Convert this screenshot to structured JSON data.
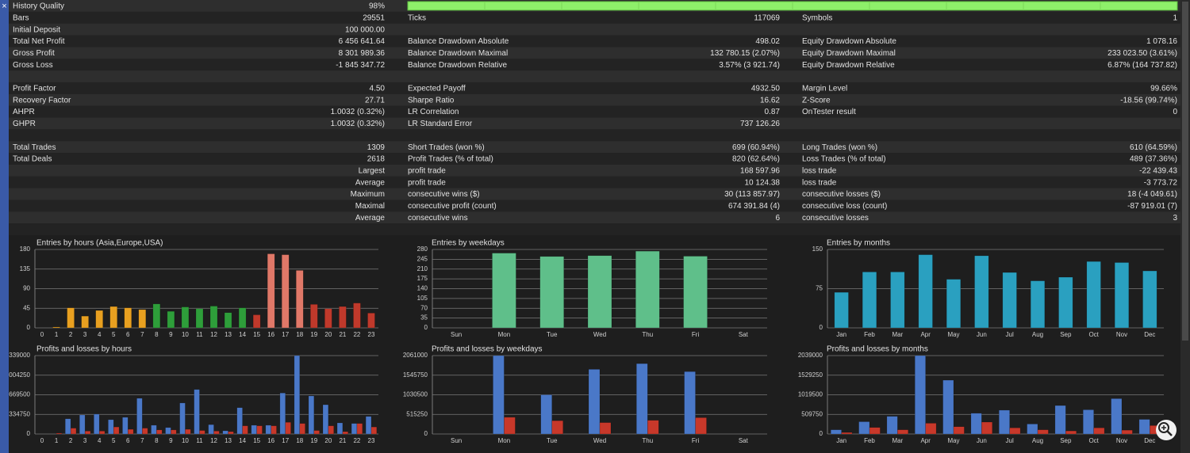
{
  "stats": {
    "rows": [
      [
        {
          "label": "History Quality",
          "value": "98%"
        }
      ],
      [
        {
          "label": "Bars",
          "value": "29551"
        },
        {
          "label": "Ticks",
          "value": "117069"
        },
        {
          "label": "Symbols",
          "value": "1"
        }
      ],
      [
        {
          "label": "Initial Deposit",
          "value": "100 000.00"
        }
      ],
      [
        {
          "label": "Total Net Profit",
          "value": "6 456 641.64"
        },
        {
          "label": "Balance Drawdown Absolute",
          "value": "498.02"
        },
        {
          "label": "Equity Drawdown Absolute",
          "value": "1 078.16"
        }
      ],
      [
        {
          "label": "Gross Profit",
          "value": "8 301 989.36"
        },
        {
          "label": "Balance Drawdown Maximal",
          "value": "132 780.15 (2.07%)"
        },
        {
          "label": "Equity Drawdown Maximal",
          "value": "233 023.50 (3.61%)"
        }
      ],
      [
        {
          "label": "Gross Loss",
          "value": "-1 845 347.72"
        },
        {
          "label": "Balance Drawdown Relative",
          "value": "3.57% (3 921.74)"
        },
        {
          "label": "Equity Drawdown Relative",
          "value": "6.87% (164 737.82)"
        }
      ],
      [],
      [
        {
          "label": "Profit Factor",
          "value": "4.50"
        },
        {
          "label": "Expected Payoff",
          "value": "4932.50"
        },
        {
          "label": "Margin Level",
          "value": "99.66%"
        }
      ],
      [
        {
          "label": "Recovery Factor",
          "value": "27.71"
        },
        {
          "label": "Sharpe Ratio",
          "value": "16.62"
        },
        {
          "label": "Z-Score",
          "value": "-18.56 (99.74%)"
        }
      ],
      [
        {
          "label": "AHPR",
          "value": "1.0032 (0.32%)"
        },
        {
          "label": "LR Correlation",
          "value": "0.87"
        },
        {
          "label": "OnTester result",
          "value": "0"
        }
      ],
      [
        {
          "label": "GHPR",
          "value": "1.0032 (0.32%)"
        },
        {
          "label": "LR Standard Error",
          "value": "737 126.26"
        }
      ],
      [],
      [
        {
          "label": "Total Trades",
          "value": "1309"
        },
        {
          "label": "Short Trades (won %)",
          "value": "699 (60.94%)"
        },
        {
          "label": "Long Trades (won %)",
          "value": "610 (64.59%)"
        }
      ],
      [
        {
          "label": "Total Deals",
          "value": "2618"
        },
        {
          "label": "Profit Trades (% of total)",
          "value": "820 (62.64%)"
        },
        {
          "label": "Loss Trades (% of total)",
          "value": "489 (37.36%)"
        }
      ],
      [
        {
          "value": "Largest"
        },
        {
          "label": "profit trade",
          "value": "168 597.96"
        },
        {
          "label": "loss trade",
          "value": "-22 439.43"
        }
      ],
      [
        {
          "value": "Average"
        },
        {
          "label": "profit trade",
          "value": "10 124.38"
        },
        {
          "label": "loss trade",
          "value": "-3 773.72"
        }
      ],
      [
        {
          "value": "Maximum"
        },
        {
          "label": "consecutive wins ($)",
          "value": "30 (113 857.97)"
        },
        {
          "label": "consecutive losses ($)",
          "value": "18 (-4 049.61)"
        }
      ],
      [
        {
          "value": "Maximal"
        },
        {
          "label": "consecutive profit (count)",
          "value": "674 391.84 (4)"
        },
        {
          "label": "consecutive loss (count)",
          "value": "-87 919.01 (7)"
        }
      ],
      [
        {
          "value": "Average"
        },
        {
          "label": "consecutive wins",
          "value": "6"
        },
        {
          "label": "consecutive losses",
          "value": "3"
        }
      ],
      []
    ]
  },
  "chart_data": [
    {
      "type": "bar",
      "title": "Entries by hours (Asia,Europe,USA)",
      "categories": [
        "0",
        "1",
        "2",
        "3",
        "4",
        "5",
        "6",
        "7",
        "8",
        "9",
        "10",
        "11",
        "12",
        "13",
        "14",
        "15",
        "16",
        "17",
        "18",
        "19",
        "20",
        "21",
        "22",
        "23"
      ],
      "values": [
        0,
        2,
        46,
        27,
        40,
        49,
        46,
        42,
        55,
        38,
        48,
        44,
        50,
        35,
        46,
        30,
        170,
        168,
        132,
        54,
        44,
        49,
        57,
        34
      ],
      "colors": [
        "#e8a020",
        "#e8a020",
        "#e8a020",
        "#e8a020",
        "#e8a020",
        "#e8a020",
        "#e8a020",
        "#e8a020",
        "#2e9e3a",
        "#2e9e3a",
        "#2e9e3a",
        "#2e9e3a",
        "#2e9e3a",
        "#2e9e3a",
        "#2e9e3a",
        "#c0392b",
        "#e07868",
        "#e07868",
        "#e07868",
        "#c0392b",
        "#c0392b",
        "#c0392b",
        "#c0392b",
        "#c0392b"
      ],
      "ylim": [
        0,
        180
      ],
      "yticks": [
        0,
        45,
        90,
        135,
        180
      ],
      "grid": true
    },
    {
      "type": "bar",
      "title": "Entries by weekdays",
      "categories": [
        "Sun",
        "Mon",
        "Tue",
        "Wed",
        "Thu",
        "Fri",
        "Sat"
      ],
      "values": [
        0,
        267,
        255,
        258,
        274,
        256,
        0
      ],
      "color": "#5fbf8a",
      "ylim": [
        0,
        280
      ],
      "yticks": [
        0,
        35,
        70,
        105,
        140,
        175,
        210,
        245,
        280
      ],
      "grid": true
    },
    {
      "type": "bar",
      "title": "Entries by months",
      "categories": [
        "Jan",
        "Feb",
        "Mar",
        "Apr",
        "May",
        "Jun",
        "Jul",
        "Aug",
        "Sep",
        "Oct",
        "Nov",
        "Dec"
      ],
      "values": [
        68,
        107,
        107,
        140,
        93,
        138,
        106,
        90,
        97,
        127,
        125,
        109
      ],
      "color": "#2aa0c0",
      "ylim": [
        0,
        150
      ],
      "yticks": [
        0,
        75,
        150
      ],
      "grid": true
    },
    {
      "type": "grouped-bar",
      "title": "Profits and losses by hours",
      "categories": [
        "0",
        "1",
        "2",
        "3",
        "4",
        "5",
        "6",
        "7",
        "8",
        "9",
        "10",
        "11",
        "12",
        "13",
        "14",
        "15",
        "16",
        "17",
        "18",
        "19",
        "20",
        "21",
        "22",
        "23"
      ],
      "series": [
        {
          "color": "#4a78c8",
          "values": [
            0,
            0,
            260000,
            325000,
            340000,
            245000,
            285000,
            610000,
            150000,
            110000,
            530000,
            760000,
            160000,
            55000,
            450000,
            150000,
            150000,
            700000,
            1339000,
            650000,
            500000,
            190000,
            180000,
            300000
          ]
        },
        {
          "color": "#c8382a",
          "values": [
            0,
            15000,
            100000,
            50000,
            50000,
            120000,
            80000,
            100000,
            70000,
            70000,
            80000,
            60000,
            50000,
            40000,
            140000,
            140000,
            140000,
            200000,
            180000,
            60000,
            140000,
            40000,
            180000,
            120000
          ]
        }
      ],
      "ylim": [
        0,
        1339000
      ],
      "yticks": [
        0,
        334750,
        669500,
        {
          "value": 1004250,
          "label": "004250"
        },
        {
          "value": 1339000,
          "label": "339000"
        }
      ],
      "grid": true
    },
    {
      "type": "grouped-bar",
      "title": "Profits and losses by weekdays",
      "categories": [
        "Sun",
        "Mon",
        "Tue",
        "Wed",
        "Thu",
        "Fri",
        "Sat"
      ],
      "series": [
        {
          "color": "#4a78c8",
          "values": [
            0,
            2061000,
            1030000,
            1700000,
            1850000,
            1640000,
            0
          ]
        },
        {
          "color": "#c8382a",
          "values": [
            0,
            440000,
            350000,
            300000,
            360000,
            430000,
            0
          ]
        }
      ],
      "ylim": [
        0,
        2061000
      ],
      "yticks": [
        0,
        515250,
        1030500,
        1545750,
        2061000
      ],
      "grid": true
    },
    {
      "type": "grouped-bar",
      "title": "Profits and losses by months",
      "categories": [
        "Jan",
        "Feb",
        "Mar",
        "Apr",
        "May",
        "Jun",
        "Jul",
        "Aug",
        "Sep",
        "Oct",
        "Nov",
        "Dec"
      ],
      "series": [
        {
          "color": "#4a78c8",
          "values": [
            110000,
            320000,
            460000,
            2039000,
            1400000,
            540000,
            620000,
            260000,
            740000,
            630000,
            920000,
            380000
          ]
        },
        {
          "color": "#c8382a",
          "values": [
            40000,
            170000,
            110000,
            280000,
            190000,
            310000,
            160000,
            110000,
            80000,
            160000,
            100000,
            220000
          ]
        }
      ],
      "ylim": [
        0,
        2039000
      ],
      "yticks": [
        0,
        509750,
        1019500,
        1529250,
        2039000
      ],
      "grid": true
    }
  ]
}
